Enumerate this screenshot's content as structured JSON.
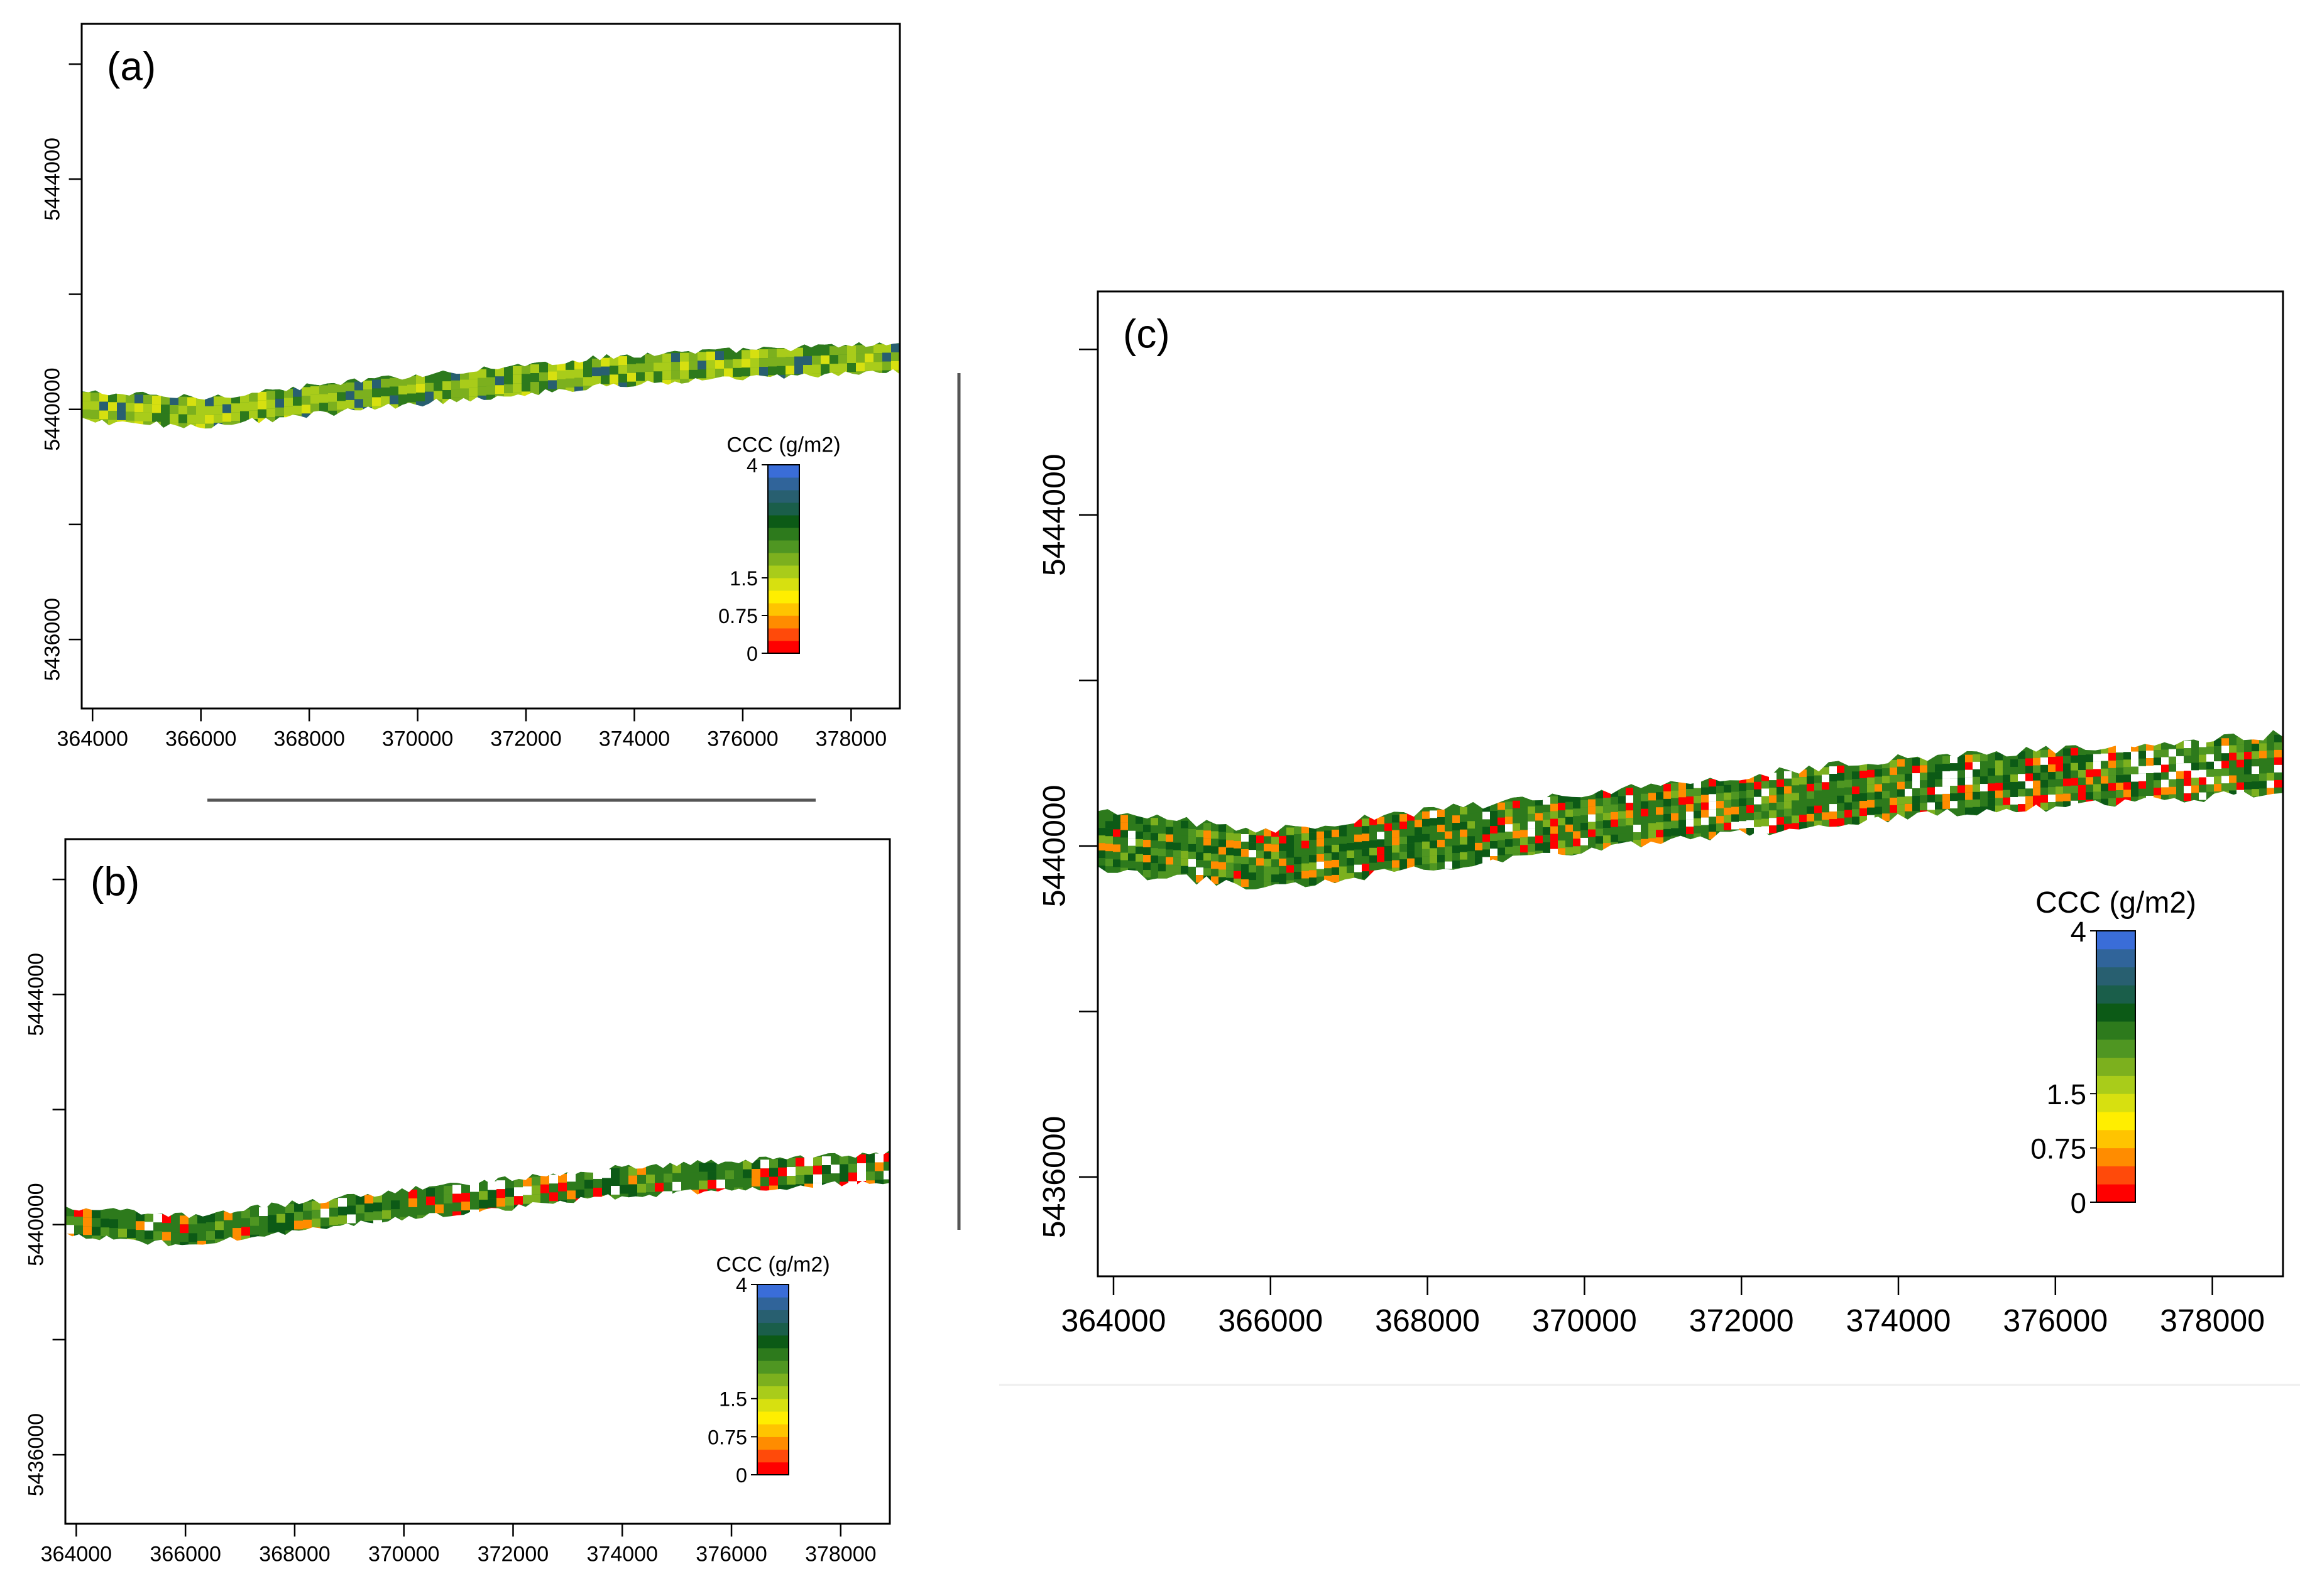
{
  "figure": {
    "colorbar_colors": [
      "#ff0000",
      "#ff4a0a",
      "#ff8c00",
      "#ffc400",
      "#ffee00",
      "#d7e010",
      "#a9cc1a",
      "#7cb01e",
      "#4f9622",
      "#2d7a1c",
      "#0c5a16",
      "#1a5e4a",
      "#285f70",
      "#30649a",
      "#3a6dd8"
    ],
    "strip_palette": [
      "#2d7a1c",
      "#0c5a16",
      "#4f9622",
      "#7cb01e",
      "#a9cc1a",
      "#d7e010",
      "#ffee00",
      "#ff8c00",
      "#ff0000",
      "#285f70",
      "#ffffff"
    ]
  },
  "chart_data": [
    {
      "type": "heatmap",
      "panel_label": "(a)",
      "title": "",
      "xlabel": "",
      "ylabel": "",
      "xlim": [
        363800,
        378900
      ],
      "ylim": [
        5434800,
        5446700
      ],
      "x_ticks": [
        364000,
        366000,
        368000,
        370000,
        372000,
        374000,
        376000,
        378000
      ],
      "x_tick_labels": [
        "364000",
        "366000",
        "368000",
        "370000",
        "372000",
        "374000",
        "376000",
        "378000"
      ],
      "y_ticks": [
        5436000,
        5438000,
        5440000,
        5442000,
        5444000,
        5446000
      ],
      "y_tick_labels": [
        "5436000",
        "",
        "5440000",
        "",
        "5444000",
        ""
      ],
      "strip_centerline": [
        [
          363800,
          5440050
        ],
        [
          366000,
          5439950
        ],
        [
          370000,
          5440350
        ],
        [
          374000,
          5440700
        ],
        [
          378900,
          5440900
        ]
      ],
      "strip_width": 500,
      "legend": {
        "title": "CCC (g/m2)",
        "ticks": [
          0,
          0.75,
          1.5,
          4
        ],
        "tick_labels": [
          "0",
          "0.75",
          "1.5",
          "4"
        ],
        "position": "lower-right"
      },
      "dominant_class": "mixed yellow-green"
    },
    {
      "type": "heatmap",
      "panel_label": "(b)",
      "title": "",
      "xlabel": "",
      "ylabel": "",
      "xlim": [
        363800,
        378900
      ],
      "ylim": [
        5434800,
        5446700
      ],
      "x_ticks": [
        364000,
        366000,
        368000,
        370000,
        372000,
        374000,
        376000,
        378000
      ],
      "x_tick_labels": [
        "364000",
        "366000",
        "368000",
        "370000",
        "372000",
        "374000",
        "376000",
        "378000"
      ],
      "y_ticks": [
        5436000,
        5438000,
        5440000,
        5442000,
        5444000,
        5446000
      ],
      "y_tick_labels": [
        "5436000",
        "",
        "5440000",
        "",
        "5444000",
        ""
      ],
      "strip_centerline": [
        [
          363800,
          5440050
        ],
        [
          366000,
          5439900
        ],
        [
          370000,
          5440350
        ],
        [
          374000,
          5440750
        ],
        [
          378900,
          5441000
        ]
      ],
      "strip_width": 500,
      "legend": {
        "title": "CCC (g/m2)",
        "ticks": [
          0,
          0.75,
          1.5,
          4
        ],
        "tick_labels": [
          "0",
          "0.75",
          "1.5",
          "4"
        ],
        "position": "lower-right"
      },
      "dominant_class": "green with red patches in east"
    },
    {
      "type": "heatmap",
      "panel_label": "(c)",
      "title": "",
      "xlabel": "",
      "ylabel": "",
      "xlim": [
        363800,
        378900
      ],
      "ylim": [
        5434800,
        5446700
      ],
      "x_ticks": [
        364000,
        366000,
        368000,
        370000,
        372000,
        374000,
        376000,
        378000
      ],
      "x_tick_labels": [
        "364000",
        "366000",
        "368000",
        "370000",
        "372000",
        "374000",
        "376000",
        "378000"
      ],
      "y_ticks": [
        5436000,
        5438000,
        5440000,
        5442000,
        5444000,
        5446000
      ],
      "y_tick_labels": [
        "5436000",
        "",
        "5440000",
        "",
        "5444000",
        ""
      ],
      "strip_centerline": [
        [
          363800,
          5440050
        ],
        [
          366000,
          5439850
        ],
        [
          370000,
          5440300
        ],
        [
          374000,
          5440700
        ],
        [
          378900,
          5441000
        ]
      ],
      "strip_width": 700,
      "legend": {
        "title": "CCC (g/m2)",
        "ticks": [
          0,
          0.75,
          1.5,
          4
        ],
        "tick_labels": [
          "0",
          "0.75",
          "1.5",
          "4"
        ],
        "position": "lower-right"
      },
      "dominant_class": "green with red patches in east"
    }
  ]
}
